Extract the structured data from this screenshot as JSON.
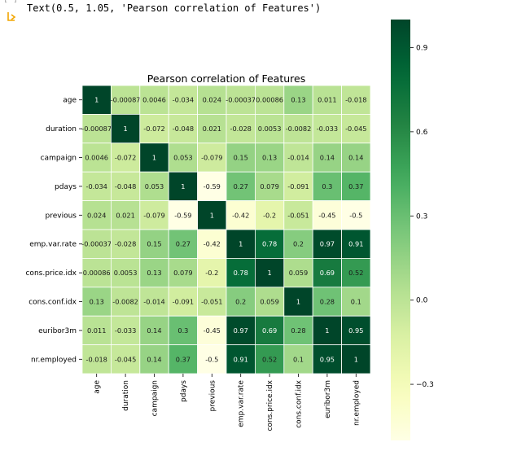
{
  "output": {
    "text": "Text(0.5, 1.05, 'Pearson correlation of Features')"
  },
  "chart_data": {
    "type": "heatmap",
    "title": "Pearson correlation of Features",
    "colormap": "YlGn",
    "vmin": -0.5,
    "vmax": 1.0,
    "labels": [
      "age",
      "duration",
      "campaign",
      "pdays",
      "previous",
      "emp.var.rate",
      "cons.price.idx",
      "cons.conf.idx",
      "euribor3m",
      "nr.employed"
    ],
    "values": [
      [
        1,
        -0.00087,
        0.0046,
        -0.034,
        0.024,
        -0.00037,
        0.00086,
        0.13,
        0.011,
        -0.018
      ],
      [
        -0.00087,
        1,
        -0.072,
        -0.048,
        0.021,
        -0.028,
        0.0053,
        -0.0082,
        -0.033,
        -0.045
      ],
      [
        0.0046,
        -0.072,
        1,
        0.053,
        -0.079,
        0.15,
        0.13,
        -0.014,
        0.14,
        0.14
      ],
      [
        -0.034,
        -0.048,
        0.053,
        1,
        -0.59,
        0.27,
        0.079,
        -0.091,
        0.3,
        0.37
      ],
      [
        0.024,
        0.021,
        -0.079,
        -0.59,
        1,
        -0.42,
        -0.2,
        -0.051,
        -0.45,
        -0.5
      ],
      [
        -0.00037,
        -0.028,
        0.15,
        0.27,
        -0.42,
        1,
        0.78,
        0.2,
        0.97,
        0.91
      ],
      [
        0.00086,
        0.0053,
        0.13,
        0.079,
        -0.2,
        0.78,
        1,
        0.059,
        0.69,
        0.52
      ],
      [
        0.13,
        -0.0082,
        -0.014,
        -0.091,
        -0.051,
        0.2,
        0.059,
        1,
        0.28,
        0.1
      ],
      [
        0.011,
        -0.033,
        0.14,
        0.3,
        -0.45,
        0.97,
        0.69,
        0.28,
        1,
        0.95
      ],
      [
        -0.018,
        -0.045,
        0.14,
        0.37,
        -0.5,
        0.91,
        0.52,
        0.1,
        0.95,
        1
      ]
    ],
    "cell_labels": [
      [
        "1",
        "-0.00087",
        "0.0046",
        "-0.034",
        "0.024",
        "-0.00037",
        "0.00086",
        "0.13",
        "0.011",
        "-0.018"
      ],
      [
        "-0.00087",
        "1",
        "-0.072",
        "-0.048",
        "0.021",
        "-0.028",
        "0.0053",
        "-0.0082",
        "-0.033",
        "-0.045"
      ],
      [
        "0.0046",
        "-0.072",
        "1",
        "0.053",
        "-0.079",
        "0.15",
        "0.13",
        "-0.014",
        "0.14",
        "0.14"
      ],
      [
        "-0.034",
        "-0.048",
        "0.053",
        "1",
        "-0.59",
        "0.27",
        "0.079",
        "-0.091",
        "0.3",
        "0.37"
      ],
      [
        "0.024",
        "0.021",
        "-0.079",
        "-0.59",
        "1",
        "-0.42",
        "-0.2",
        "-0.051",
        "-0.45",
        "-0.5"
      ],
      [
        "-0.00037",
        "-0.028",
        "0.15",
        "0.27",
        "-0.42",
        "1",
        "0.78",
        "0.2",
        "0.97",
        "0.91"
      ],
      [
        "0.00086",
        "0.0053",
        "0.13",
        "0.079",
        "-0.2",
        "0.78",
        "1",
        "0.059",
        "0.69",
        "0.52"
      ],
      [
        "0.13",
        "-0.0082",
        "-0.014",
        "-0.091",
        "-0.051",
        "0.2",
        "0.059",
        "1",
        "0.28",
        "0.1"
      ],
      [
        "0.011",
        "-0.033",
        "0.14",
        "0.3",
        "-0.45",
        "0.97",
        "0.69",
        "0.28",
        "1",
        "0.95"
      ],
      [
        "-0.018",
        "-0.045",
        "0.14",
        "0.37",
        "-0.5",
        "0.91",
        "0.52",
        "0.1",
        "0.95",
        "1"
      ]
    ],
    "colorbar": {
      "ticks": [
        0.9,
        0.6,
        0.3,
        0.0,
        -0.3
      ],
      "tick_labels": [
        "0.9",
        "0.6",
        "0.3",
        "0.0",
        "−0.3"
      ]
    },
    "grid": false,
    "legend": "colorbar-right"
  }
}
